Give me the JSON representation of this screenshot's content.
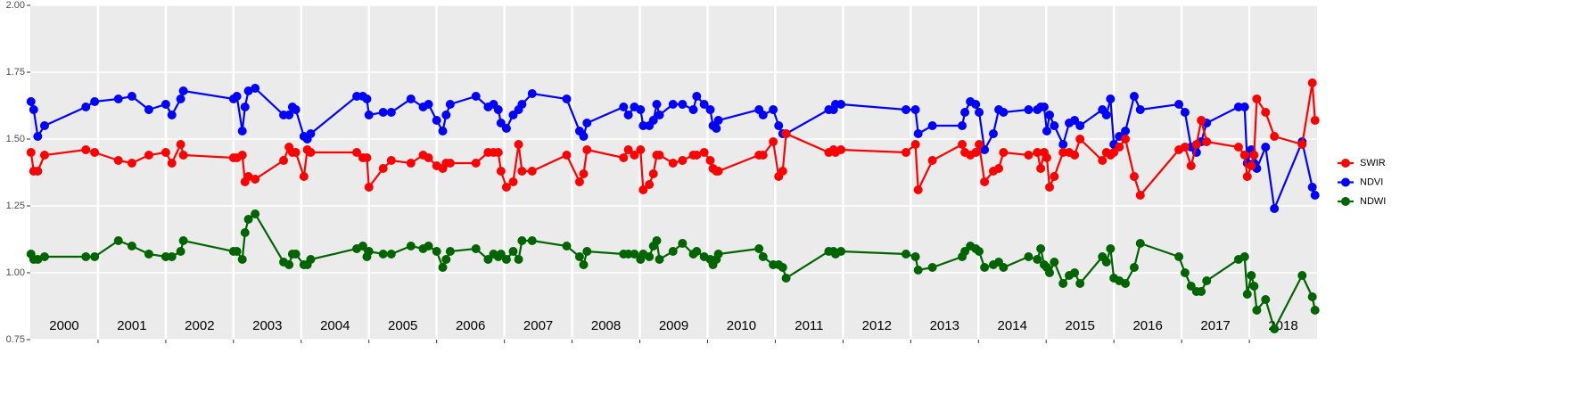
{
  "chart_data": {
    "type": "line",
    "x": [
      2000.01,
      2000.05,
      2000.11,
      2000.21,
      2000.82,
      2000.95,
      2001.3,
      2001.5,
      2001.75,
      2002.0,
      2002.09,
      2002.22,
      2002.26,
      2003.0,
      2003.05,
      2003.13,
      2003.17,
      2003.22,
      2003.32,
      2003.74,
      2003.82,
      2003.87,
      2003.92,
      2004.04,
      2004.09,
      2004.14,
      2004.82,
      2004.91,
      2004.97,
      2005.0,
      2005.21,
      2005.33,
      2005.62,
      2005.8,
      2005.88,
      2006.0,
      2006.09,
      2006.14,
      2006.2,
      2006.58,
      2006.76,
      2006.84,
      2006.91,
      2006.95,
      2007.03,
      2007.13,
      2007.21,
      2007.26,
      2007.41,
      2007.92,
      2008.11,
      2008.17,
      2008.22,
      2008.76,
      2008.83,
      2008.92,
      2009.01,
      2009.05,
      2009.14,
      2009.2,
      2009.25,
      2009.29,
      2009.49,
      2009.63,
      2009.79,
      2009.84,
      2009.95,
      2010.04,
      2010.08,
      2010.13,
      2010.16,
      2010.76,
      2010.82,
      2010.97,
      2011.05,
      2011.11,
      2011.16,
      2011.79,
      2011.86,
      2011.89,
      2011.97,
      2012.93,
      2013.07,
      2013.11,
      2013.32,
      2013.76,
      2013.8,
      2013.88,
      2013.96,
      2014.01,
      2014.09,
      2014.22,
      2014.3,
      2014.37,
      2014.74,
      2014.87,
      2014.92,
      2014.97,
      2015.01,
      2015.05,
      2015.12,
      2015.25,
      2015.34,
      2015.42,
      2015.5,
      2015.83,
      2015.89,
      2015.95,
      2016.0,
      2016.08,
      2016.17,
      2016.3,
      2016.39,
      2016.96,
      2017.05,
      2017.14,
      2017.22,
      2017.29,
      2017.37,
      2017.84,
      2017.93,
      2017.97,
      2018.03,
      2018.07,
      2018.11,
      2018.24,
      2018.37,
      2018.78,
      2018.93,
      2018.97
    ],
    "series": [
      {
        "name": "SWIR",
        "color": "#ff0000",
        "values": [
          1.45,
          1.38,
          1.38,
          1.44,
          1.46,
          1.45,
          1.42,
          1.41,
          1.44,
          1.45,
          1.41,
          1.48,
          1.44,
          1.43,
          1.43,
          1.44,
          1.34,
          1.36,
          1.35,
          1.42,
          1.47,
          1.45,
          1.45,
          1.36,
          1.46,
          1.45,
          1.45,
          1.43,
          1.43,
          1.32,
          1.39,
          1.42,
          1.41,
          1.44,
          1.43,
          1.4,
          1.39,
          1.41,
          1.41,
          1.41,
          1.45,
          1.45,
          1.45,
          1.38,
          1.32,
          1.34,
          1.48,
          1.38,
          1.38,
          1.44,
          1.34,
          1.37,
          1.46,
          1.43,
          1.46,
          1.44,
          1.46,
          1.31,
          1.33,
          1.37,
          1.44,
          1.44,
          1.41,
          1.42,
          1.44,
          1.44,
          1.45,
          1.42,
          1.39,
          1.38,
          1.38,
          1.44,
          1.44,
          1.49,
          1.36,
          1.38,
          1.52,
          1.45,
          1.46,
          1.45,
          1.46,
          1.45,
          1.48,
          1.31,
          1.42,
          1.48,
          1.45,
          1.44,
          1.45,
          1.48,
          1.34,
          1.38,
          1.39,
          1.45,
          1.44,
          1.45,
          1.39,
          1.45,
          1.43,
          1.32,
          1.36,
          1.45,
          1.45,
          1.44,
          1.5,
          1.42,
          1.45,
          1.44,
          1.45,
          1.47,
          1.5,
          1.36,
          1.29,
          1.46,
          1.47,
          1.4,
          1.48,
          1.57,
          1.49,
          1.47,
          1.44,
          1.36,
          1.4,
          1.44,
          1.65,
          1.6,
          1.51,
          1.48,
          1.71,
          1.57
        ]
      },
      {
        "name": "NDVI",
        "color": "#0000ff",
        "values": [
          1.64,
          1.61,
          1.51,
          1.55,
          1.62,
          1.64,
          1.65,
          1.66,
          1.61,
          1.63,
          1.59,
          1.65,
          1.68,
          1.65,
          1.66,
          1.53,
          1.62,
          1.68,
          1.69,
          1.59,
          1.59,
          1.62,
          1.61,
          1.51,
          1.5,
          1.52,
          1.66,
          1.66,
          1.65,
          1.59,
          1.6,
          1.6,
          1.65,
          1.62,
          1.63,
          1.57,
          1.53,
          1.59,
          1.63,
          1.66,
          1.62,
          1.63,
          1.61,
          1.56,
          1.54,
          1.59,
          1.61,
          1.63,
          1.67,
          1.65,
          1.53,
          1.51,
          1.56,
          1.62,
          1.59,
          1.62,
          1.61,
          1.55,
          1.55,
          1.57,
          1.63,
          1.59,
          1.63,
          1.63,
          1.61,
          1.66,
          1.63,
          1.61,
          1.55,
          1.54,
          1.57,
          1.61,
          1.59,
          1.61,
          1.55,
          1.52,
          1.52,
          1.61,
          1.61,
          1.63,
          1.63,
          1.61,
          1.61,
          1.52,
          1.55,
          1.55,
          1.6,
          1.64,
          1.63,
          1.6,
          1.46,
          1.52,
          1.61,
          1.6,
          1.61,
          1.61,
          1.62,
          1.62,
          1.53,
          1.59,
          1.55,
          1.48,
          1.56,
          1.57,
          1.55,
          1.61,
          1.59,
          1.65,
          1.48,
          1.51,
          1.53,
          1.66,
          1.61,
          1.63,
          1.6,
          1.47,
          1.45,
          1.49,
          1.56,
          1.62,
          1.62,
          1.41,
          1.46,
          1.41,
          1.39,
          1.47,
          1.24,
          1.49,
          1.32,
          1.29
        ]
      },
      {
        "name": "NDWI",
        "color": "#006400",
        "values": [
          1.07,
          1.05,
          1.05,
          1.06,
          1.06,
          1.06,
          1.12,
          1.1,
          1.07,
          1.06,
          1.06,
          1.08,
          1.12,
          1.08,
          1.08,
          1.05,
          1.15,
          1.2,
          1.22,
          1.04,
          1.03,
          1.07,
          1.07,
          1.03,
          1.03,
          1.05,
          1.09,
          1.1,
          1.06,
          1.08,
          1.07,
          1.07,
          1.1,
          1.09,
          1.1,
          1.08,
          1.02,
          1.05,
          1.08,
          1.09,
          1.05,
          1.07,
          1.06,
          1.07,
          1.05,
          1.08,
          1.05,
          1.12,
          1.12,
          1.1,
          1.06,
          1.03,
          1.08,
          1.07,
          1.07,
          1.07,
          1.05,
          1.07,
          1.06,
          1.1,
          1.12,
          1.05,
          1.08,
          1.11,
          1.07,
          1.08,
          1.06,
          1.05,
          1.03,
          1.05,
          1.07,
          1.09,
          1.06,
          1.03,
          1.03,
          1.02,
          0.98,
          1.08,
          1.08,
          1.07,
          1.08,
          1.07,
          1.06,
          1.01,
          1.02,
          1.06,
          1.08,
          1.1,
          1.09,
          1.08,
          1.02,
          1.03,
          1.04,
          1.02,
          1.06,
          1.05,
          1.09,
          1.03,
          1.02,
          1.0,
          1.04,
          0.96,
          0.99,
          1.0,
          0.96,
          1.06,
          1.04,
          1.09,
          0.98,
          0.97,
          0.96,
          1.02,
          1.11,
          1.06,
          1.0,
          0.95,
          0.93,
          0.93,
          0.97,
          1.05,
          1.06,
          0.92,
          0.99,
          0.95,
          0.86,
          0.9,
          0.79,
          0.99,
          0.91,
          0.86
        ]
      }
    ],
    "xlim": [
      2000,
      2019
    ],
    "xticks": [
      2001,
      2002,
      2003,
      2004,
      2005,
      2006,
      2007,
      2008,
      2009,
      2010,
      2011,
      2012,
      2013,
      2014,
      2015,
      2016,
      2017,
      2018
    ],
    "year_labels": [
      {
        "value": 2000.5,
        "label": "2000"
      },
      {
        "value": 2001.5,
        "label": "2001"
      },
      {
        "value": 2002.5,
        "label": "2002"
      },
      {
        "value": 2003.5,
        "label": "2003"
      },
      {
        "value": 2004.5,
        "label": "2004"
      },
      {
        "value": 2005.5,
        "label": "2005"
      },
      {
        "value": 2006.5,
        "label": "2006"
      },
      {
        "value": 2007.5,
        "label": "2007"
      },
      {
        "value": 2008.5,
        "label": "2008"
      },
      {
        "value": 2009.5,
        "label": "2009"
      },
      {
        "value": 2010.5,
        "label": "2010"
      },
      {
        "value": 2011.5,
        "label": "2011"
      },
      {
        "value": 2012.5,
        "label": "2012"
      },
      {
        "value": 2013.5,
        "label": "2013"
      },
      {
        "value": 2014.5,
        "label": "2014"
      },
      {
        "value": 2015.5,
        "label": "2015"
      },
      {
        "value": 2016.5,
        "label": "2016"
      },
      {
        "value": 2017.5,
        "label": "2017"
      },
      {
        "value": 2018.5,
        "label": "2018"
      }
    ],
    "ylim": [
      0.75,
      2.0
    ],
    "yticks": [
      0.75,
      {
        "value": 1,
        "label": "1.00"
      },
      1.25,
      {
        "value": 1.5,
        "label": "1.50"
      },
      1.75,
      {
        "value": 2,
        "label": "2.00"
      }
    ],
    "grid": true,
    "legend": "right"
  }
}
